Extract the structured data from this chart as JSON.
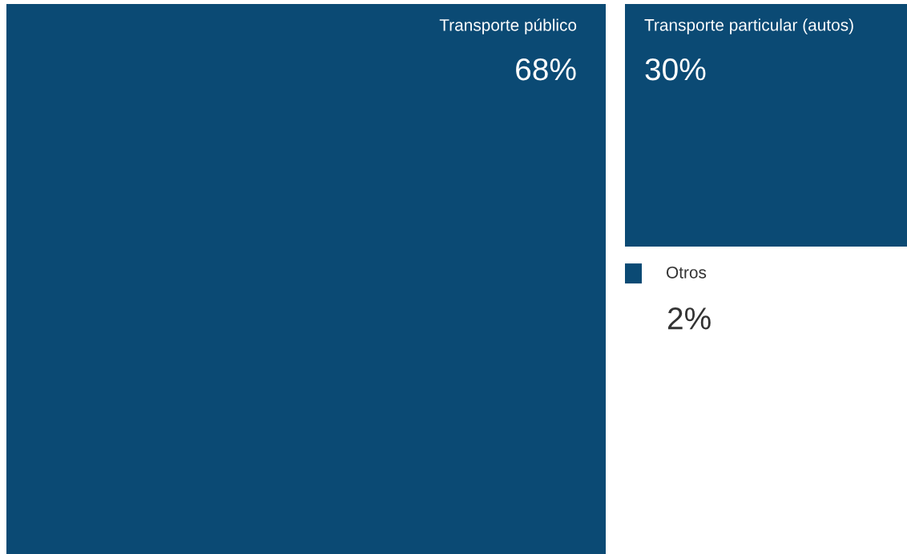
{
  "chart_data": {
    "type": "other",
    "categories": [
      "Transporte público",
      "Transporte particular (autos)",
      "Otros"
    ],
    "values": [
      68,
      30,
      2
    ],
    "value_labels": [
      "68%",
      "30%",
      "2%"
    ],
    "colors": [
      "#0b4a74",
      "#0b4a74",
      "#0b4a74"
    ]
  }
}
